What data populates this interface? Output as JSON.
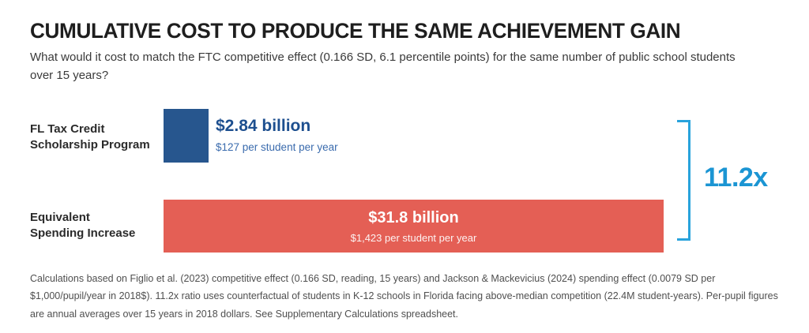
{
  "header": {
    "title": "CUMULATIVE COST TO PRODUCE THE SAME ACHIEVEMENT GAIN",
    "subtitle": "What would it cost to match the FTC competitive effect (0.166 SD, 6.1 percentile points) for the same number of public school students over 15 years?"
  },
  "chart_data": {
    "type": "bar",
    "orientation": "horizontal",
    "title": "CUMULATIVE COST TO PRODUCE THE SAME ACHIEVEMENT GAIN",
    "categories": [
      "FL Tax Credit Scholarship Program",
      "Equivalent Spending Increase"
    ],
    "values": [
      2.84,
      31.8
    ],
    "value_unit": "billion USD",
    "xlim": [
      0,
      31.8
    ],
    "grid": false,
    "legend": "none",
    "rows": [
      {
        "label_line1": "FL Tax Credit",
        "label_line2": "Scholarship Program",
        "value": 2.84,
        "value_label": "$2.84 billion",
        "per_student_label": "$127 per student per year",
        "color": "#27568E"
      },
      {
        "label_line1": "Equivalent",
        "label_line2": "Spending Increase",
        "value": 31.8,
        "value_label": "$31.8 billion",
        "per_student_label": "$1,423 per student per year",
        "color": "#E45F55"
      }
    ],
    "ratio_annotation": {
      "label": "11.2x",
      "text_color": "#1B95D3",
      "bracket_color": "#29A3DC"
    }
  },
  "footnote": "Calculations based on Figlio et al. (2023) competitive effect (0.166 SD, reading, 15 years) and Jackson & Mackevicius (2024) spending effect (0.0079 SD per $1,000/pupil/year in 2018$). 11.2x ratio uses counterfactual of students in K-12 schools in Florida facing above-median competition (22.4M student-years). Per-pupil figures are annual averages over 15 years in 2018 dollars. See Supplementary Calculations spreadsheet."
}
